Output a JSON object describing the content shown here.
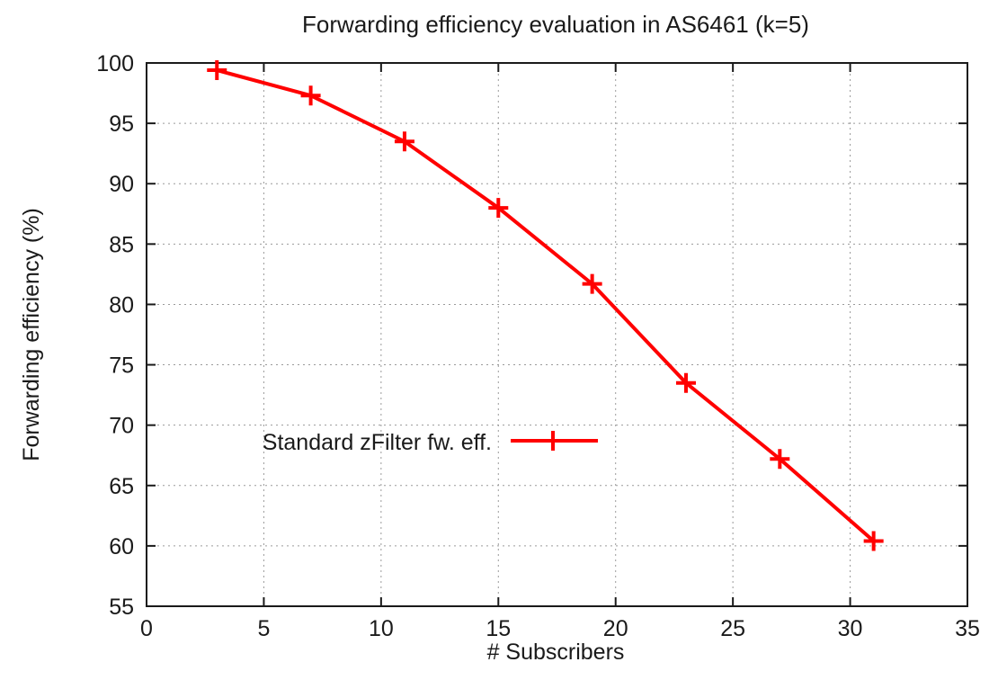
{
  "chart_data": {
    "type": "line",
    "title": "Forwarding efficiency evaluation in AS6461 (k=5)",
    "xlabel": "# Subscribers",
    "ylabel": "Forwarding efficiency (%)",
    "xlim": [
      0,
      35
    ],
    "ylim": [
      55,
      100
    ],
    "xticks": [
      0,
      5,
      10,
      15,
      20,
      25,
      30,
      35
    ],
    "yticks": [
      55,
      60,
      65,
      70,
      75,
      80,
      85,
      90,
      95,
      100
    ],
    "grid": true,
    "legend_position": "left",
    "series": [
      {
        "name": "Standard zFilter fw. eff.",
        "color": "#ff0000",
        "marker": "plus",
        "x": [
          3,
          7,
          11,
          15,
          19,
          23,
          27,
          31
        ],
        "y": [
          99.4,
          97.3,
          93.5,
          88.0,
          81.7,
          73.5,
          67.2,
          60.4
        ]
      }
    ]
  }
}
